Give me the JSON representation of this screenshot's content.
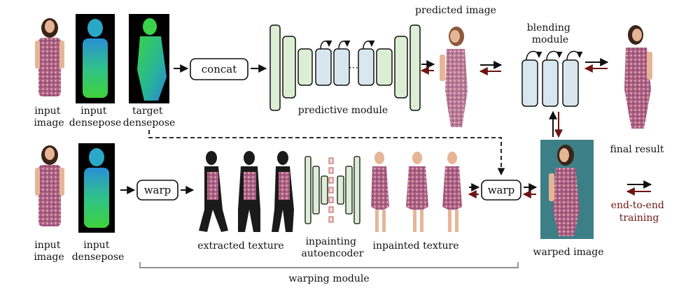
{
  "top_row": {
    "input_image_label": [
      "input",
      "image"
    ],
    "input_densepose_label": [
      "input",
      "densepose"
    ],
    "target_densepose_label": [
      "target",
      "densepose"
    ]
  },
  "concat_label": "concat",
  "predictive_module_label": "predictive module",
  "predicted_image_label": "predicted image",
  "blending_module_label": [
    "blending",
    "module"
  ],
  "final_result_label": "final result",
  "bottom_row": {
    "input_image_label": [
      "input",
      "image"
    ],
    "input_densepose_label": [
      "input",
      "densepose"
    ]
  },
  "warp_label_left": "warp",
  "warp_label_right": "warp",
  "extracted_texture_label": "extracted texture",
  "inpainting_autoencoder_label": [
    "inpainting",
    "autoencoder"
  ],
  "inpainted_texture_label": "inpainted texture",
  "warped_image_label": "warped image",
  "warping_module_label": "warping module",
  "legend_label": [
    "end-to-end",
    "training"
  ],
  "colors": {
    "forward": "#111111",
    "backward": "#6e1414",
    "predictive_block": "#dcefd4",
    "blending_block": "#d8e6ef",
    "skin": "#e5b596",
    "dress": "#b0607e",
    "hair": "#3a2418",
    "teal_bg": "#3d7f86"
  }
}
